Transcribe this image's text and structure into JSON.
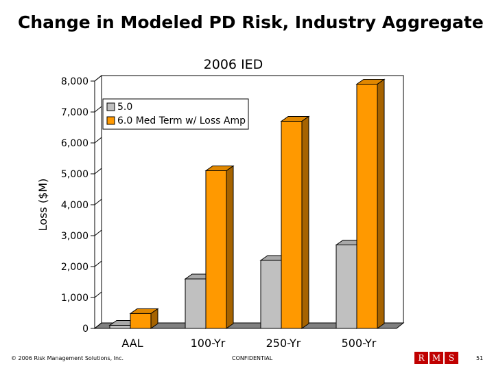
{
  "slide": {
    "title": "Change in Modeled PD Risk, Industry Aggregate",
    "footer_copyright": "© 2006 Risk Management Solutions, Inc.",
    "footer_confidential": "CONFIDENTIAL",
    "page_number": "51",
    "logo_letters": [
      "R",
      "M",
      "S"
    ]
  },
  "colors": {
    "series_a": "#c0c0c0",
    "series_b": "#ff9900",
    "floor": "#808080"
  },
  "chart_data": {
    "type": "bar",
    "title": "2006 IED",
    "ylabel": "Loss ($M)",
    "xlabel": "",
    "categories": [
      "AAL",
      "100-Yr",
      "250-Yr",
      "500-Yr"
    ],
    "series": [
      {
        "name": "5.0",
        "values": [
          100,
          1600,
          2200,
          2700
        ]
      },
      {
        "name": "6.0 Med Term w/ Loss Amp",
        "values": [
          480,
          5100,
          6700,
          7900
        ]
      }
    ],
    "ylim": [
      0,
      8000
    ],
    "yticks": [
      0,
      1000,
      2000,
      3000,
      4000,
      5000,
      6000,
      7000,
      8000
    ],
    "ytick_labels": [
      "0",
      "1,000",
      "2,000",
      "3,000",
      "4,000",
      "5,000",
      "6,000",
      "7,000",
      "8,000"
    ],
    "legend_position": "top-left",
    "grid": false
  }
}
